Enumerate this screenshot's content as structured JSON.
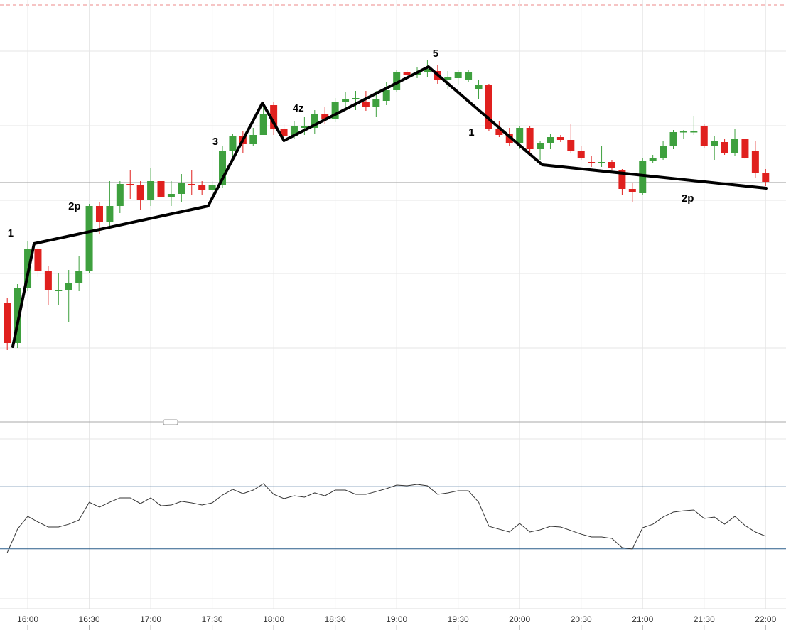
{
  "chart_data": [
    {
      "type": "candlestick",
      "categories": [
        null,
        null,
        "16:00",
        null,
        null,
        null,
        null,
        null,
        "16:30",
        null,
        null,
        null,
        null,
        null,
        "17:00",
        null,
        null,
        null,
        null,
        null,
        "17:30",
        null,
        null,
        null,
        null,
        null,
        "18:00",
        null,
        null,
        null,
        null,
        null,
        "18:30",
        null,
        null,
        null,
        null,
        null,
        "19:00",
        null,
        null,
        null,
        null,
        null,
        "19:30",
        null,
        null,
        null,
        null,
        null,
        "20:00",
        null,
        null,
        null,
        null,
        null,
        "20:30",
        null,
        null,
        null,
        null,
        null,
        "21:00",
        null,
        null,
        null,
        null,
        null,
        "21:30",
        null,
        null,
        null,
        null,
        null,
        "22:00"
      ],
      "open": [
        163,
        107,
        185,
        240,
        208,
        180,
        181,
        191,
        208,
        300,
        277,
        300,
        331,
        329,
        308,
        335,
        312,
        317,
        331,
        329,
        322,
        330,
        377,
        398,
        387,
        400,
        442,
        408,
        399,
        410,
        410,
        430,
        422,
        447,
        450,
        446,
        440,
        448,
        463,
        488,
        484,
        489,
        490,
        477,
        480,
        478,
        465,
        470,
        408,
        402,
        388,
        410,
        380,
        388,
        397,
        393,
        378,
        362,
        360,
        362,
        350,
        324,
        318,
        364,
        368,
        385,
        404,
        404,
        413,
        385,
        390,
        374,
        394,
        378,
        346
      ],
      "high": [
        170,
        190,
        250,
        250,
        215,
        205,
        210,
        230,
        303,
        305,
        335,
        335,
        350,
        335,
        353,
        345,
        335,
        345,
        350,
        335,
        335,
        385,
        402,
        405,
        410,
        445,
        447,
        415,
        420,
        425,
        435,
        440,
        452,
        460,
        462,
        462,
        462,
        475,
        492,
        492,
        495,
        505,
        498,
        490,
        492,
        492,
        478,
        472,
        420,
        410,
        412,
        412,
        392,
        402,
        400,
        415,
        385,
        370,
        385,
        365,
        352,
        332,
        368,
        372,
        392,
        407,
        407,
        427,
        415,
        398,
        395,
        408,
        395,
        392,
        352
      ],
      "low": [
        97,
        100,
        180,
        200,
        160,
        160,
        137,
        180,
        205,
        260,
        268,
        290,
        310,
        295,
        300,
        300,
        300,
        305,
        315,
        315,
        310,
        325,
        365,
        375,
        385,
        400,
        400,
        390,
        395,
        400,
        402,
        415,
        418,
        440,
        435,
        434,
        425,
        442,
        460,
        480,
        480,
        482,
        472,
        465,
        470,
        475,
        450,
        405,
        397,
        385,
        380,
        375,
        365,
        380,
        390,
        375,
        365,
        355,
        355,
        350,
        315,
        305,
        315,
        360,
        365,
        380,
        395,
        400,
        382,
        365,
        372,
        370,
        366,
        340,
        328
      ],
      "close": [
        107,
        185,
        240,
        208,
        181,
        182,
        191,
        208,
        300,
        277,
        300,
        331,
        329,
        308,
        335,
        312,
        317,
        332,
        330,
        322,
        330,
        377,
        398,
        387,
        400,
        430,
        408,
        399,
        412,
        412,
        430,
        422,
        447,
        450,
        452,
        440,
        450,
        463,
        489,
        484,
        489,
        493,
        477,
        482,
        489,
        489,
        471,
        408,
        400,
        388,
        410,
        380,
        388,
        397,
        393,
        378,
        367,
        360,
        362,
        353,
        324,
        319,
        364,
        368,
        385,
        404,
        405,
        405,
        385,
        392,
        375,
        394,
        368,
        346,
        334
      ],
      "up_color": "#3ea03e",
      "down_color": "#e0201e",
      "ylim": [
        0,
        590
      ],
      "wave_line": {
        "x": [
          0.54,
          2.62,
          19.6,
          24.9,
          27.0,
          41.1,
          52.2,
          74.05
        ],
        "y": [
          102,
          247,
          300,
          445,
          392,
          496,
          358,
          325
        ]
      },
      "annotations": [
        {
          "text": "1",
          "x": 0.33,
          "y": 257
        },
        {
          "text": "2p",
          "x": 6.57,
          "y": 295
        },
        {
          "text": "3",
          "x": 20.3,
          "y": 386
        },
        {
          "text": "4z",
          "x": 28.4,
          "y": 433
        },
        {
          "text": "5",
          "x": 41.8,
          "y": 510
        },
        {
          "text": "1",
          "x": 45.3,
          "y": 399
        },
        {
          "text": "2p",
          "x": 66.4,
          "y": 306
        }
      ]
    },
    {
      "type": "line",
      "values": [
        16.4,
        39,
        51.4,
        45.9,
        41.1,
        41.1,
        43.8,
        47.9,
        65,
        60.3,
        65,
        69.2,
        69.2,
        63.7,
        69.2,
        61.6,
        62.3,
        65.8,
        64.4,
        62.3,
        64.4,
        71.9,
        77.4,
        73.3,
        76.7,
        82.9,
        72.6,
        68.5,
        71.2,
        69.9,
        74,
        71.2,
        76.7,
        76.7,
        72.6,
        72.6,
        75.3,
        78.1,
        81.5,
        80.8,
        82.2,
        80.8,
        72.6,
        74,
        76,
        76,
        65,
        41.8,
        39,
        36.3,
        44.5,
        36.3,
        38.4,
        41.8,
        41.1,
        37.7,
        34.2,
        31.5,
        31.5,
        30.1,
        21.2,
        19.9,
        40.4,
        43.8,
        50.7,
        55.5,
        56.8,
        57.5,
        49.3,
        50.7,
        43.8,
        51.4,
        42.5,
        36.3,
        32.2
      ],
      "color": "#333333",
      "level_color": "#2a5d8a",
      "ylim": [
        0,
        100
      ],
      "levels": [
        20,
        80
      ]
    }
  ]
}
